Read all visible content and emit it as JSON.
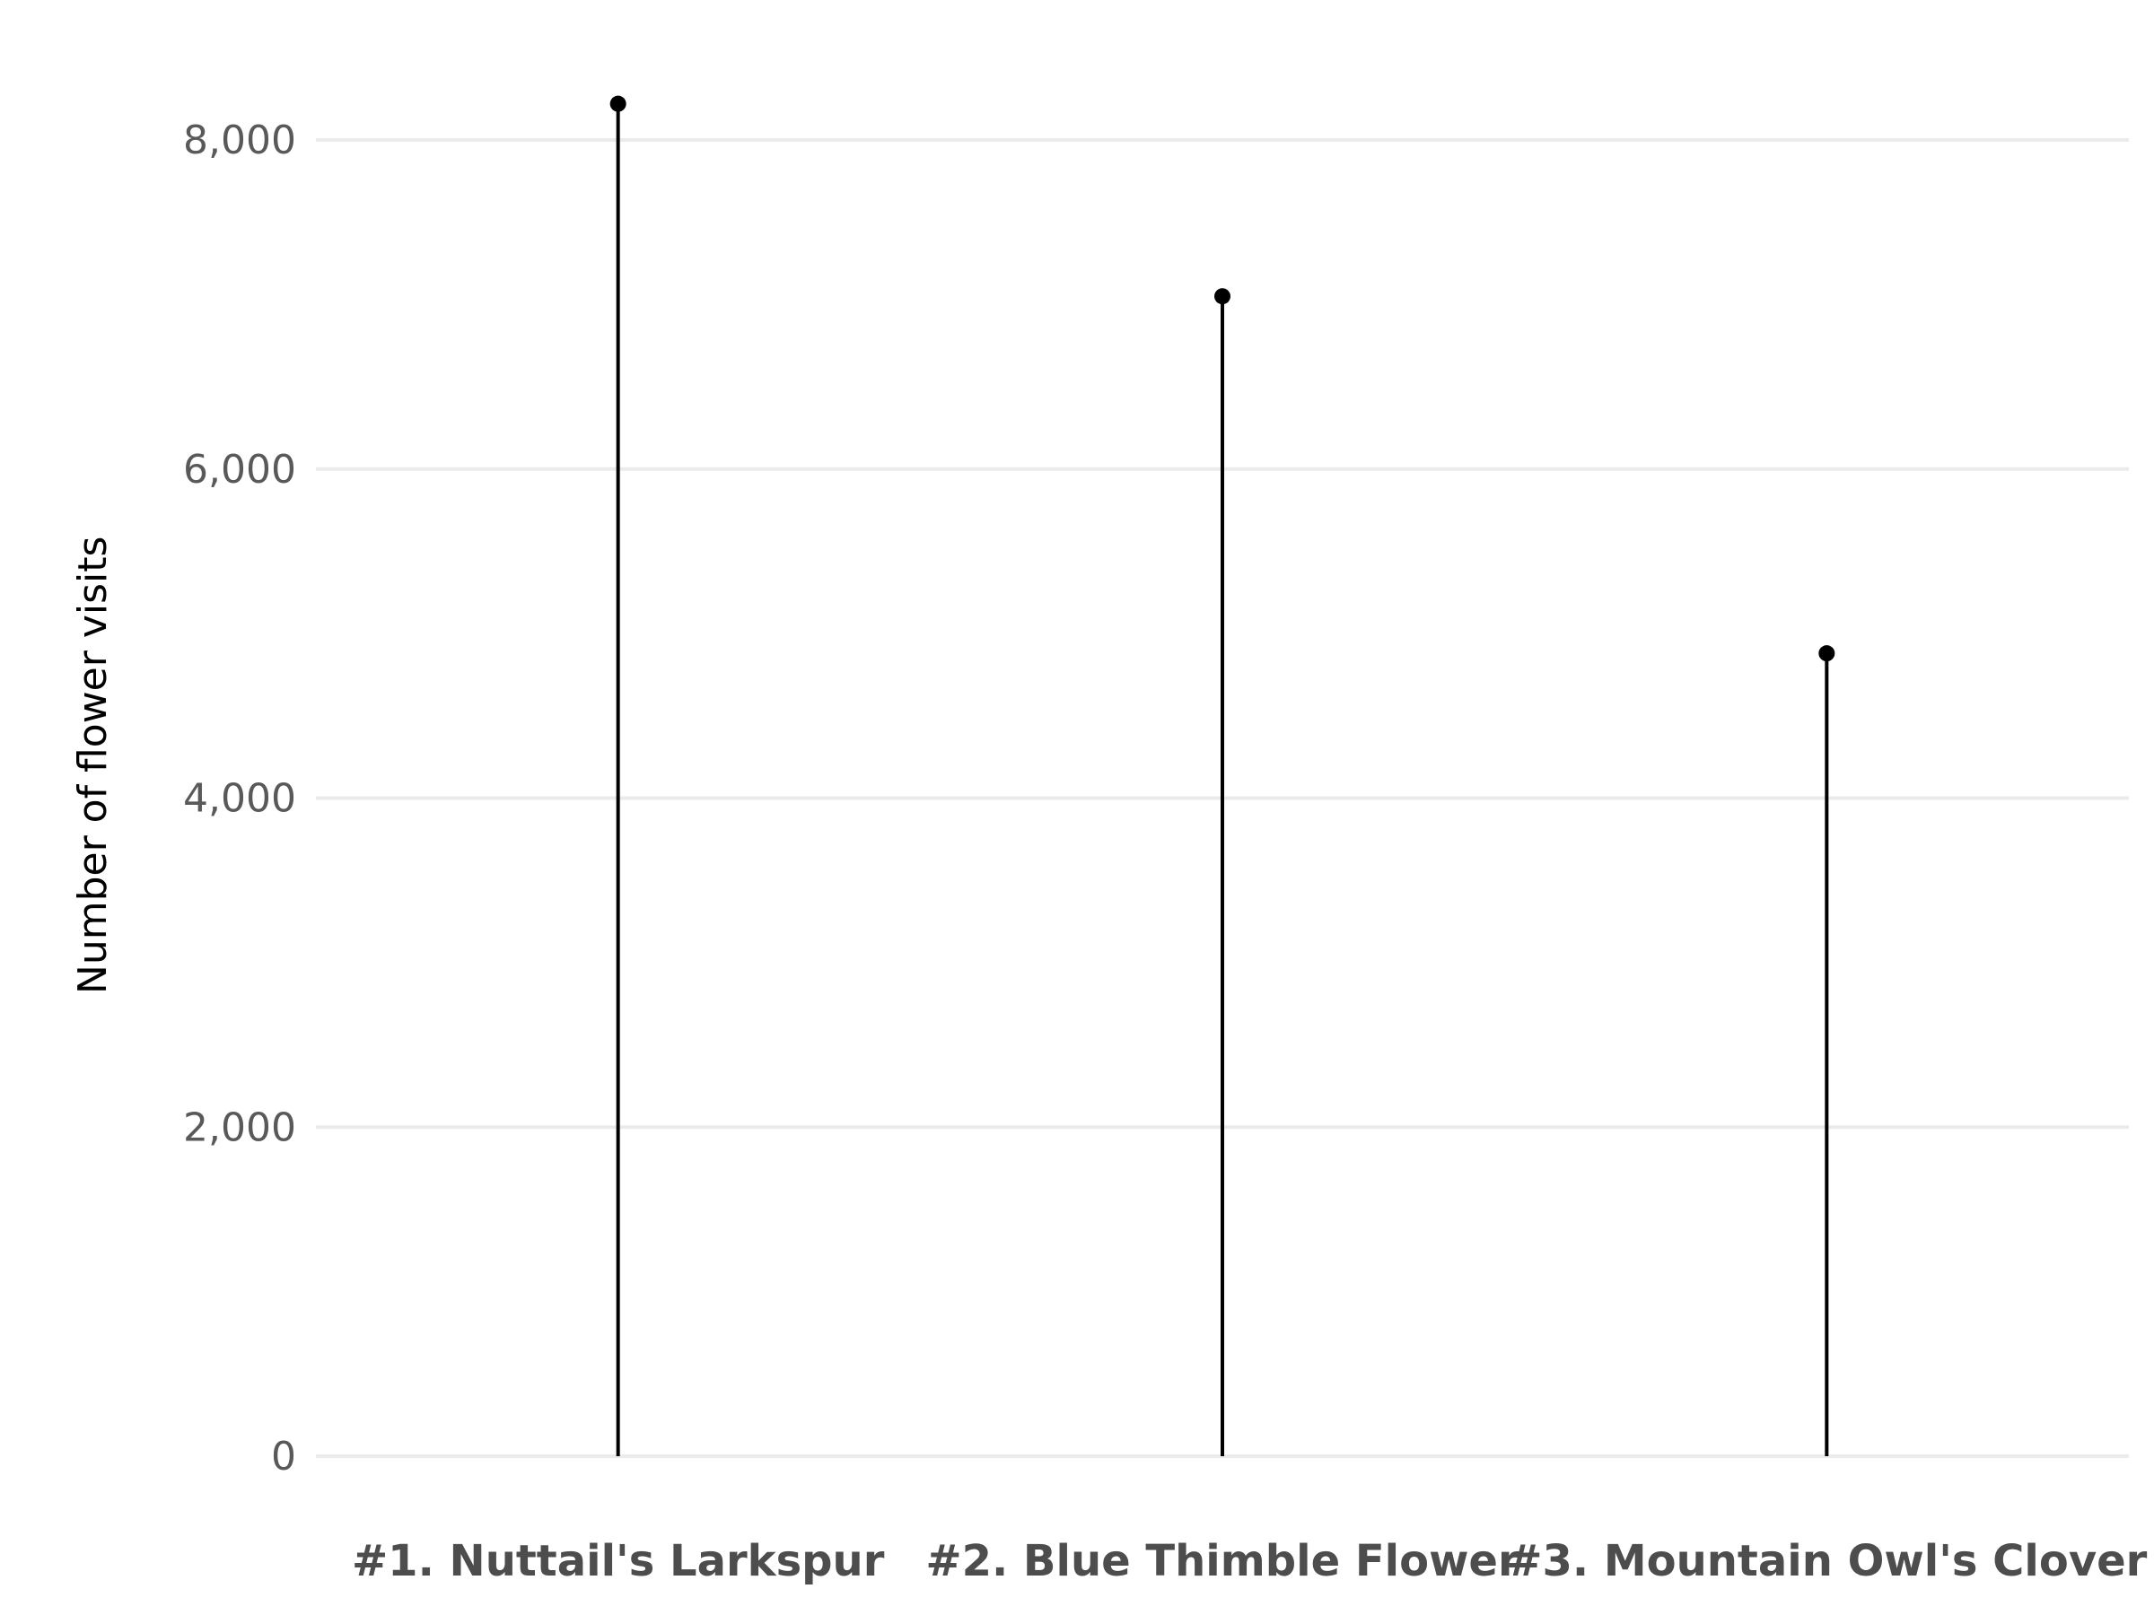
{
  "chart_data": {
    "type": "lollipop",
    "title": "",
    "xlabel": "",
    "ylabel": "Number of flower visits",
    "categories": [
      "#1. Nuttail's Larkspur",
      "#2. Blue Thimble Flower",
      "#3. Mountain Owl's Clover"
    ],
    "values": [
      8220,
      7050,
      4880
    ],
    "ylim": [
      0,
      8400
    ],
    "yticks": [
      0,
      2000,
      4000,
      6000,
      8000
    ],
    "ytick_labels": [
      "0",
      "2,000",
      "4,000",
      "6,000",
      "8,000"
    ],
    "grid": "horizontal major lines",
    "legend": "none",
    "colors": {
      "stem": "#000000",
      "point": "#000000",
      "grid": "#ebebeb",
      "tick_text": "#595959",
      "category_text": "#4d4d4d"
    }
  }
}
